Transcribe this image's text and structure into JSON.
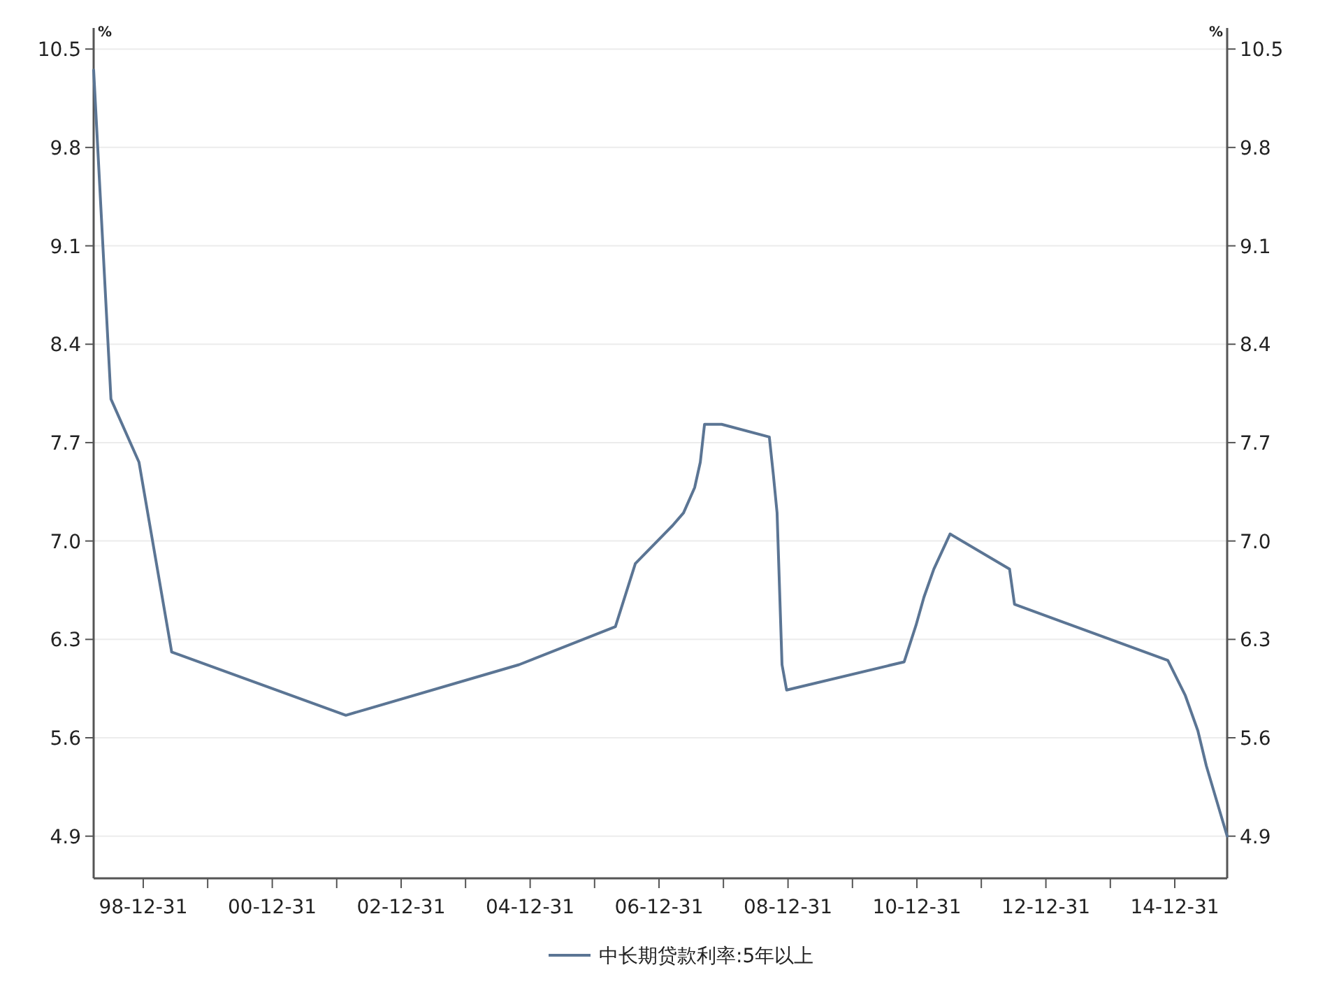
{
  "chart_data": {
    "type": "line",
    "ylabel": "%",
    "y2label": "%",
    "x": [
      "1998-03-25",
      "1998-07-01",
      "1998-12-07",
      "1999-06-10",
      "2002-02-21",
      "2004-10-29",
      "2006-04-28",
      "2006-08-19",
      "2007-03-18",
      "2007-05-19",
      "2007-07-21",
      "2007-08-22",
      "2007-09-15",
      "2007-12-21",
      "2008-09-16",
      "2008-10-09",
      "2008-10-30",
      "2008-11-27",
      "2008-12-23",
      "2010-10-20",
      "2010-12-26",
      "2011-02-09",
      "2011-04-06",
      "2011-07-07",
      "2012-06-08",
      "2012-07-06",
      "2014-11-22",
      "2015-03-01",
      "2015-05-11",
      "2015-06-28",
      "2015-08-26",
      "2015-10-24"
    ],
    "series": [
      {
        "name": "中长期贷款利率:5年以上",
        "color": "#5b7594",
        "values": [
          10.35,
          8.01,
          7.56,
          6.21,
          5.76,
          6.12,
          6.39,
          6.84,
          7.11,
          7.2,
          7.38,
          7.56,
          7.83,
          7.83,
          7.74,
          7.47,
          7.2,
          6.12,
          5.94,
          6.14,
          6.4,
          6.6,
          6.8,
          7.05,
          6.8,
          6.55,
          6.15,
          5.9,
          5.65,
          5.4,
          5.15,
          4.9
        ]
      }
    ],
    "xlim": [
      "1998-03-25",
      "2015-10-24"
    ],
    "xticks": [
      {
        "value": "1998-12-31",
        "label": "98-12-31"
      },
      {
        "value": "1999-12-31",
        "label": null
      },
      {
        "value": "2000-12-31",
        "label": "00-12-31"
      },
      {
        "value": "2001-12-31",
        "label": null
      },
      {
        "value": "2002-12-31",
        "label": "02-12-31"
      },
      {
        "value": "2003-12-31",
        "label": null
      },
      {
        "value": "2004-12-31",
        "label": "04-12-31"
      },
      {
        "value": "2005-12-31",
        "label": null
      },
      {
        "value": "2006-12-31",
        "label": "06-12-31"
      },
      {
        "value": "2007-12-31",
        "label": null
      },
      {
        "value": "2008-12-31",
        "label": "08-12-31"
      },
      {
        "value": "2009-12-31",
        "label": null
      },
      {
        "value": "2010-12-31",
        "label": "10-12-31"
      },
      {
        "value": "2011-12-31",
        "label": null
      },
      {
        "value": "2012-12-31",
        "label": "12-12-31"
      },
      {
        "value": "2013-12-31",
        "label": null
      },
      {
        "value": "2014-12-31",
        "label": "14-12-31"
      }
    ],
    "ylim": [
      4.6,
      10.65
    ],
    "yticks": [
      4.9,
      5.6,
      6.3,
      {
        "value": 7,
        "label": "7.0"
      },
      7.7,
      8.4,
      9.1,
      9.8,
      10.5
    ],
    "y2lim": [
      4.6,
      10.65
    ],
    "y2ticks": [
      4.9,
      5.6,
      6.3,
      {
        "value": 7,
        "label": "7.0"
      },
      7.7,
      8.4,
      9.1,
      9.8,
      10.5
    ],
    "grid": "y",
    "legend": "bottom",
    "line_style": "solid",
    "marker": "none"
  }
}
